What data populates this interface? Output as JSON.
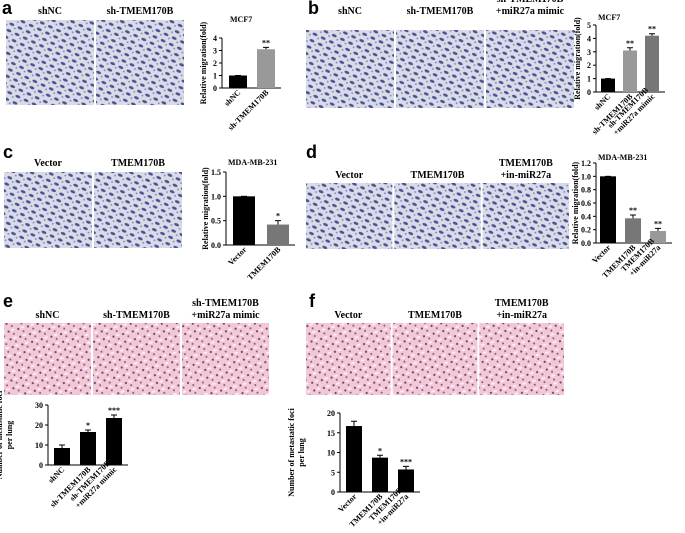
{
  "panels": [
    {
      "label": "a",
      "images": [
        "shNC",
        "sh-TMEM170B"
      ]
    },
    {
      "label": "b",
      "images": [
        "shNC",
        "sh-TMEM170B",
        "sh-TMEM170B\n+miR27a mimic"
      ]
    },
    {
      "label": "c",
      "images": [
        "Vector",
        "TMEM170B"
      ]
    },
    {
      "label": "d",
      "images": [
        "Vector",
        "TMEM170B",
        "TMEM170B\n+in-miR27a"
      ]
    },
    {
      "label": "e",
      "images": [
        "shNC",
        "sh-TMEM170B",
        "sh-TMEM170B\n+miR27a mimic"
      ]
    },
    {
      "label": "f",
      "images": [
        "Vector",
        "TMEM170B",
        "TMEM170B\n+in-miR27a"
      ]
    }
  ],
  "chart_data": [
    {
      "type": "bar",
      "title": "MCF7",
      "y_label": "Relative migration(fold)",
      "categories": [
        "shNC",
        "sh-TMEM170B"
      ],
      "values": [
        1,
        3.1
      ],
      "errors": [
        0,
        0.15
      ],
      "colors": [
        "#000000",
        "#999999"
      ],
      "significance": [
        null,
        "**"
      ],
      "ylim": [
        0,
        4
      ],
      "yticks": [
        0,
        1,
        2,
        3,
        4
      ]
    },
    {
      "type": "bar",
      "title": "MCF7",
      "y_label": "Relative migration(fold)",
      "categories": [
        "shNC",
        "sh-TMEM170B",
        "sh-TMEM170B\n+miR27a mimic"
      ],
      "values": [
        1,
        3.1,
        4.2
      ],
      "errors": [
        0,
        0.2,
        0.15
      ],
      "colors": [
        "#000000",
        "#999999",
        "#777777"
      ],
      "significance": [
        null,
        "**",
        "**"
      ],
      "ylim": [
        0,
        5
      ],
      "yticks": [
        0,
        1,
        2,
        3,
        4,
        5
      ]
    },
    {
      "type": "bar",
      "title": "MDA-MB-231",
      "y_label": "Relative migration(fold)",
      "categories": [
        "Vector",
        "TMEM170B"
      ],
      "values": [
        1,
        0.42
      ],
      "errors": [
        0,
        0.08
      ],
      "colors": [
        "#000000",
        "#777777"
      ],
      "significance": [
        null,
        "*"
      ],
      "ylim": [
        0,
        1.5
      ],
      "yticks": [
        {
          "value": 0,
          "label": "0.0"
        },
        0.5,
        {
          "value": 1,
          "label": "1.0"
        },
        1.5
      ]
    },
    {
      "type": "bar",
      "title": "MDA-MB-231",
      "y_label": "Relative migration(fold)",
      "categories": [
        "Vector",
        "TMEM170B",
        "TMEM170B\n+in-miR27a"
      ],
      "values": [
        1,
        0.37,
        0.18
      ],
      "errors": [
        0,
        0.05,
        0.04
      ],
      "colors": [
        "#000000",
        "#777777",
        "#999999"
      ],
      "significance": [
        null,
        "**",
        "**"
      ],
      "ylim": [
        0,
        1.2
      ],
      "yticks": [
        {
          "value": 0,
          "label": "0.0"
        },
        0.2,
        0.4,
        0.6,
        0.8,
        {
          "value": 1,
          "label": "1.0"
        },
        1.2
      ]
    },
    {
      "type": "bar",
      "y_label": "Number of metastatic foci\nper lung",
      "categories": [
        "shNC",
        "sh-TMEM170B",
        "sh-TMEM170B\n+miR27a mimic"
      ],
      "values": [
        8.5,
        16.5,
        23.5
      ],
      "errors": [
        1.5,
        1,
        1.5
      ],
      "colors": [
        "#000000",
        "#000000",
        "#000000"
      ],
      "significance": [
        null,
        "*",
        "***"
      ],
      "ylim": [
        0,
        30
      ],
      "yticks": [
        0,
        10,
        20,
        30
      ]
    },
    {
      "type": "bar",
      "y_label": "Number of metastatic foci\nper lung",
      "categories": [
        "Vector",
        "TMEM170B",
        "TMEM170B\n+in-miR27a"
      ],
      "values": [
        16.7,
        8.7,
        5.7
      ],
      "errors": [
        1.2,
        0.6,
        0.8
      ],
      "colors": [
        "#000000",
        "#000000",
        "#000000"
      ],
      "significance": [
        null,
        "*",
        "***"
      ],
      "ylim": [
        0,
        20
      ],
      "yticks": [
        0,
        5,
        10,
        15,
        20
      ]
    }
  ]
}
